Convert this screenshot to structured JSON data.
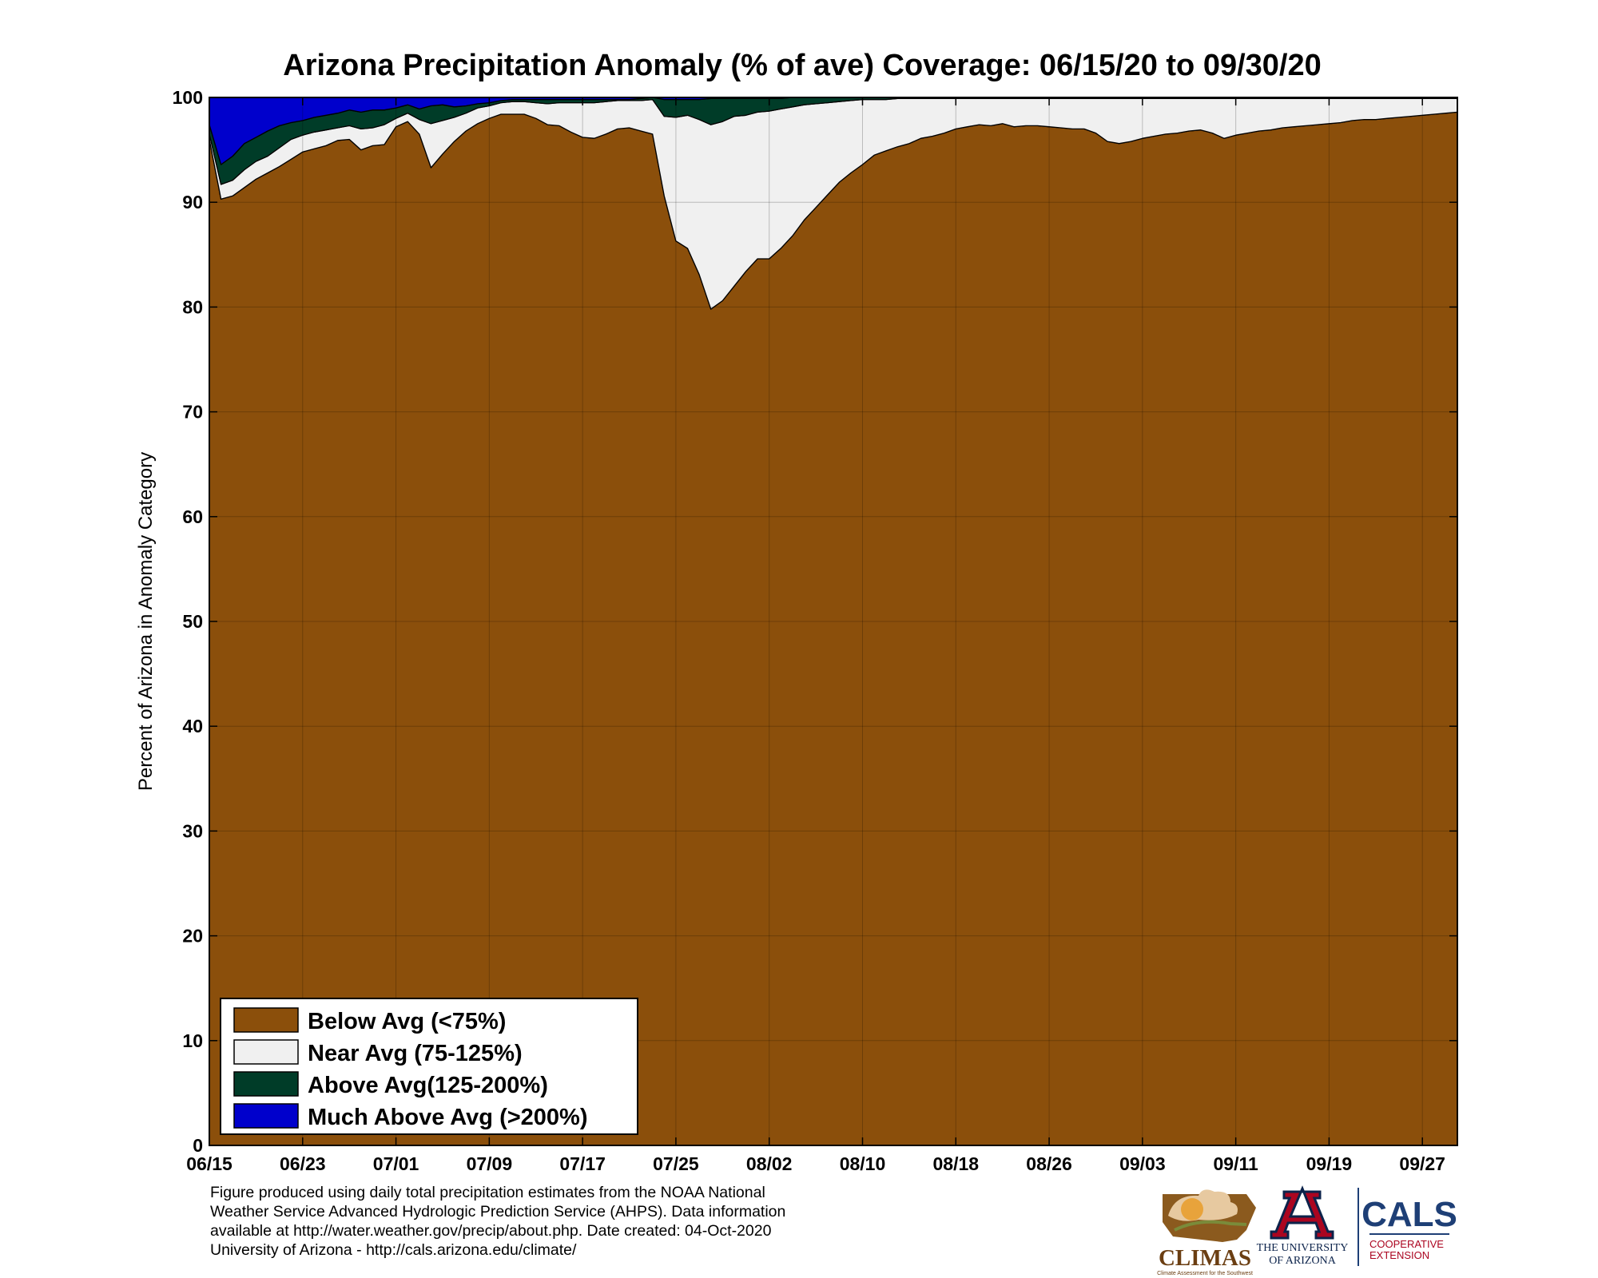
{
  "chart_data": {
    "type": "area",
    "stacked": true,
    "title": "Arizona Precipitation Anomaly (% of ave) Coverage: 06/15/20 to 09/30/20",
    "ylabel": "Percent of Arizona in Anomaly Category",
    "xlabel": "",
    "ylim": [
      0,
      100
    ],
    "yticks": [
      "0",
      "10",
      "20",
      "30",
      "40",
      "50",
      "60",
      "70",
      "80",
      "90",
      "100"
    ],
    "xticks": [
      "06/15",
      "06/23",
      "07/01",
      "07/09",
      "07/17",
      "07/25",
      "08/02",
      "08/10",
      "08/18",
      "08/26",
      "09/03",
      "09/11",
      "09/19",
      "09/27"
    ],
    "grid": true,
    "x_start": "06/15",
    "x_end": "09/30",
    "x": [
      "06/15",
      "06/16",
      "06/17",
      "06/18",
      "06/19",
      "06/20",
      "06/21",
      "06/22",
      "06/23",
      "06/24",
      "06/25",
      "06/26",
      "06/27",
      "06/28",
      "06/29",
      "06/30",
      "07/01",
      "07/02",
      "07/03",
      "07/04",
      "07/05",
      "07/06",
      "07/07",
      "07/08",
      "07/09",
      "07/10",
      "07/11",
      "07/12",
      "07/13",
      "07/14",
      "07/15",
      "07/16",
      "07/17",
      "07/18",
      "07/19",
      "07/20",
      "07/21",
      "07/22",
      "07/23",
      "07/24",
      "07/25",
      "07/26",
      "07/27",
      "07/28",
      "07/29",
      "07/30",
      "07/31",
      "08/01",
      "08/02",
      "08/03",
      "08/04",
      "08/05",
      "08/06",
      "08/07",
      "08/08",
      "08/09",
      "08/10",
      "08/11",
      "08/12",
      "08/13",
      "08/14",
      "08/15",
      "08/16",
      "08/17",
      "08/18",
      "08/19",
      "08/20",
      "08/21",
      "08/22",
      "08/23",
      "08/24",
      "08/25",
      "08/26",
      "08/27",
      "08/28",
      "08/29",
      "08/30",
      "08/31",
      "09/01",
      "09/02",
      "09/03",
      "09/04",
      "09/05",
      "09/06",
      "09/07",
      "09/08",
      "09/09",
      "09/10",
      "09/11",
      "09/12",
      "09/13",
      "09/14",
      "09/15",
      "09/16",
      "09/17",
      "09/18",
      "09/19",
      "09/20",
      "09/21",
      "09/22",
      "09/23",
      "09/24",
      "09/25",
      "09/26",
      "09/27",
      "09/28",
      "09/29",
      "09/30"
    ],
    "legend_position": "bottom-left",
    "series": [
      {
        "name": "Below Avg (<75%)",
        "color": "#8B4F0B",
        "values": [
          96,
          90.3,
          90.6,
          91.4,
          92.2,
          92.8,
          93.4,
          94.1,
          94.8,
          95.1,
          95.4,
          95.9,
          96,
          95,
          95.4,
          95.5,
          97.2,
          97.7,
          96.5,
          93.3,
          94.6,
          95.8,
          96.8,
          97.5,
          98,
          98.4,
          98.4,
          98.4,
          98,
          97.4,
          97.3,
          96.7,
          96.2,
          96.1,
          96.5,
          97,
          97.1,
          96.8,
          96.5,
          90.6,
          86.3,
          85.6,
          83.1,
          79.8,
          80.6,
          82,
          83.4,
          84.6,
          84.6,
          85.6,
          86.8,
          88.3,
          89.5,
          90.7,
          91.9,
          92.8,
          93.6,
          94.5,
          94.9,
          95.3,
          95.6,
          96.1,
          96.3,
          96.6,
          97,
          97.2,
          97.4,
          97.3,
          97.5,
          97.2,
          97.3,
          97.3,
          97.2,
          97.1,
          97,
          97,
          96.6,
          95.8,
          95.6,
          95.8,
          96.1,
          96.3,
          96.5,
          96.6,
          96.8,
          96.9,
          96.6,
          96.1,
          96.4,
          96.6,
          96.8,
          96.9,
          97.1,
          97.2,
          97.3,
          97.4,
          97.5,
          97.6,
          97.8,
          97.9,
          97.9,
          98,
          98.1,
          98.2,
          98.3,
          98.4,
          98.5,
          98.6
        ]
      },
      {
        "name": "Near Avg (75-125%)",
        "color": "#F0F0F0",
        "values": [
          0.5,
          1.4,
          1.5,
          1.7,
          1.7,
          1.6,
          1.8,
          1.9,
          1.6,
          1.6,
          1.5,
          1.2,
          1.3,
          2,
          1.7,
          1.9,
          0.8,
          0.8,
          1.4,
          4.2,
          3.2,
          2.3,
          1.7,
          1.5,
          1.2,
          1.1,
          1.2,
          1.2,
          1.5,
          2,
          2.2,
          2.8,
          3.3,
          3.4,
          3.1,
          2.7,
          2.6,
          2.9,
          3.3,
          7.6,
          11.8,
          12.7,
          14.8,
          17.6,
          17.1,
          16.2,
          14.9,
          14,
          14.1,
          13.3,
          12.3,
          11,
          9.9,
          8.8,
          7.7,
          6.9,
          6.2,
          5.3,
          4.9,
          4.6,
          4.3,
          3.8,
          3.6,
          3.3,
          2.9,
          2.7,
          2.5,
          2.6,
          2.4,
          2.7,
          2.6,
          2.6,
          2.7,
          2.8,
          2.9,
          2.9,
          3.3,
          4.1,
          4.3,
          4.1,
          3.8,
          3.6,
          3.4,
          3.3,
          3.1,
          3,
          3.3,
          3.8,
          3.5,
          3.3,
          3.1,
          3,
          2.8,
          2.7,
          2.6,
          2.5,
          2.4,
          2.3,
          2.1,
          2,
          2,
          1.9,
          1.8,
          1.7,
          1.6,
          1.5,
          1.4,
          1.3
        ]
      },
      {
        "name": "Above Avg(125-200%)",
        "color": "#003C28",
        "values": [
          0.9,
          1.9,
          2.3,
          2.5,
          2.3,
          2.4,
          2.1,
          1.6,
          1.4,
          1.4,
          1.4,
          1.4,
          1.5,
          1.6,
          1.7,
          1.4,
          1,
          0.8,
          1,
          1.7,
          1.5,
          1,
          0.7,
          0.4,
          0.3,
          0.2,
          0.2,
          0.2,
          0.3,
          0.4,
          0.3,
          0.3,
          0.3,
          0.3,
          0.2,
          0.1,
          0.1,
          0.2,
          0.2,
          1.6,
          1.7,
          1.5,
          1.9,
          2.5,
          2.2,
          1.7,
          1.6,
          1.3,
          1.2,
          1,
          0.9,
          0.7,
          0.6,
          0.5,
          0.4,
          0.3,
          0.2,
          0.2,
          0.2,
          0.1,
          0.1,
          0.1,
          0.1,
          0.1,
          0.1,
          0.1,
          0.1,
          0.1,
          0.1,
          0.1,
          0.1,
          0.1,
          0.1,
          0.1,
          0.1,
          0.1,
          0.1,
          0.1,
          0.1,
          0.1,
          0.1,
          0.1,
          0.1,
          0.1,
          0.1,
          0.1,
          0.1,
          0.1,
          0.1,
          0.1,
          0.1,
          0.1,
          0.1,
          0.1,
          0.1,
          0.1,
          0,
          0,
          0,
          0,
          0,
          0,
          0,
          0,
          0,
          0,
          0,
          0
        ]
      },
      {
        "name": "Much Above Avg (>200%)",
        "color": "#0000CC",
        "values": [
          2.6,
          6.4,
          5.6,
          4.4,
          3.8,
          3.2,
          2.7,
          2.4,
          2.2,
          1.9,
          1.7,
          1.5,
          1.2,
          1.4,
          1.2,
          1.2,
          1,
          0.7,
          1.1,
          0.8,
          0.7,
          0.9,
          0.8,
          0.6,
          0.5,
          0.3,
          0.2,
          0.2,
          0.2,
          0.2,
          0.2,
          0.2,
          0.2,
          0.2,
          0.2,
          0.2,
          0.2,
          0.1,
          0,
          0.2,
          0.2,
          0.2,
          0.2,
          0.1,
          0.1,
          0.1,
          0.1,
          0.1,
          0.1,
          0.1,
          0,
          0,
          0,
          0,
          0,
          0,
          0,
          0,
          0,
          0,
          0,
          0,
          0,
          0,
          0,
          0,
          0,
          0,
          0,
          0,
          0,
          0,
          0,
          0,
          0,
          0,
          0,
          0,
          0,
          0,
          0,
          0,
          0,
          0,
          0,
          0,
          0,
          0,
          0,
          0,
          0,
          0,
          0,
          0,
          0,
          0,
          0,
          0,
          0,
          0,
          0,
          0,
          0,
          0,
          0,
          0,
          0,
          0
        ]
      }
    ]
  },
  "footnote": {
    "line1": "Figure produced using daily total precipitation estimates from the NOAA National",
    "line2": "Weather Service Advanced Hydrologic Prediction Service (AHPS). Data information",
    "line3": "available at http://water.weather.gov/precip/about.php. Date created: 04-Oct-2020",
    "line4": "University of Arizona - http://cals.arizona.edu/climate/"
  },
  "logos": {
    "climas": "CLIMAS",
    "climas_tagline": "Climate Assessment for the Southwest",
    "ua_line1": "THE UNIVERSITY",
    "ua_line2": "OF ARIZONA",
    "cals": "CALS",
    "cals_line1": "COOPERATIVE",
    "cals_line2": "EXTENSION"
  },
  "colors": {
    "below": "#8B4F0B",
    "near": "#F0F0F0",
    "above": "#003C28",
    "much_above": "#0000CC",
    "cals_blue": "#1E3F76",
    "ua_red": "#AB0520"
  }
}
